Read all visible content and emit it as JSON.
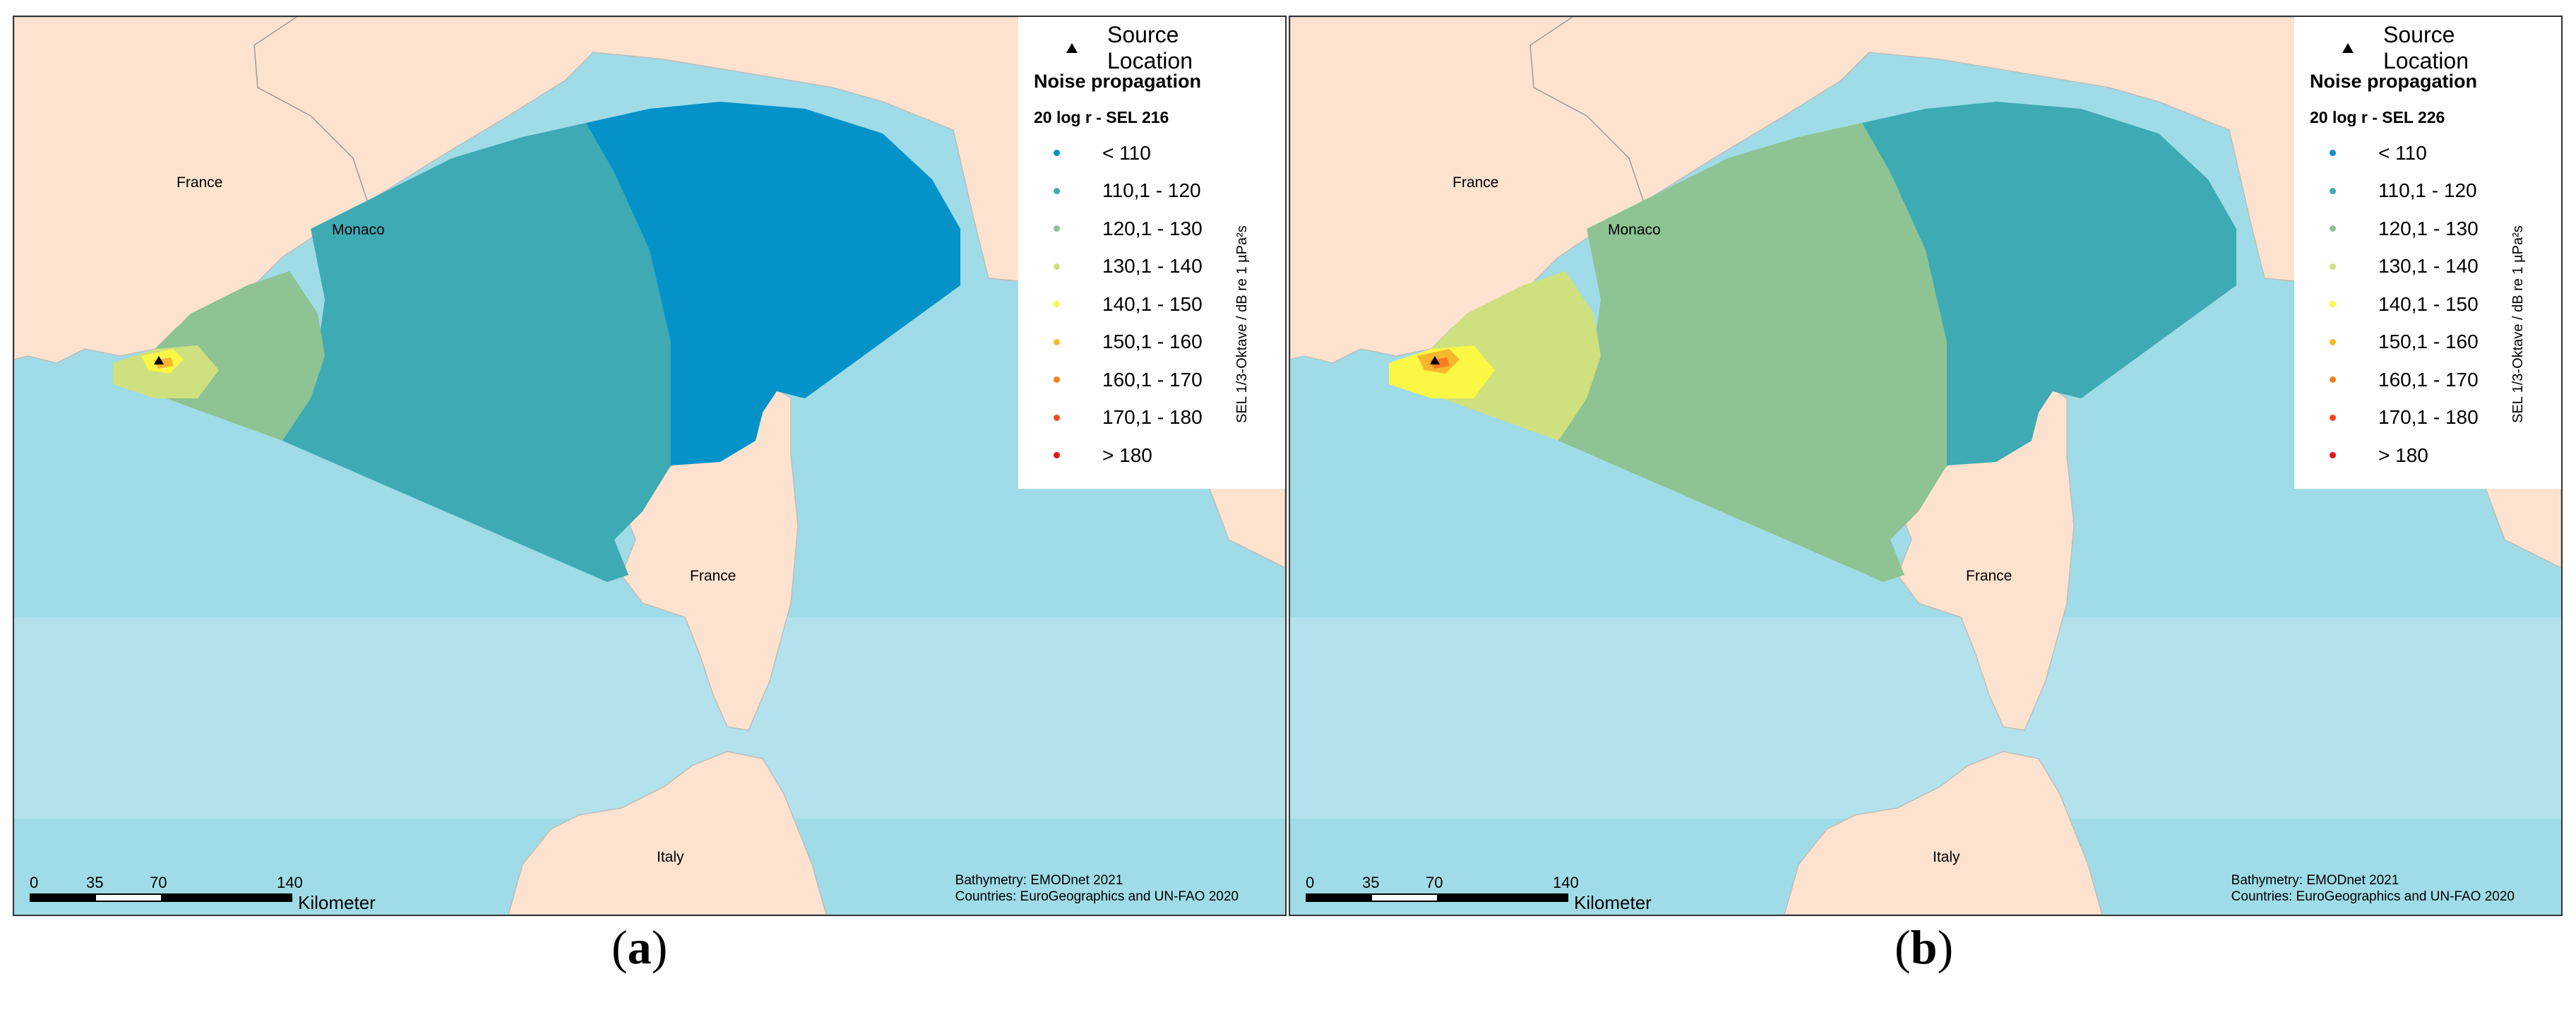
{
  "panels": [
    {
      "caption_letter": "a",
      "legend": {
        "source_label": "Source Location",
        "heading": "Noise propagation",
        "subheading": "20 log r - SEL 216",
        "axis_label": "SEL 1/3-Oktave / dB re 1 µPa²s"
      },
      "places": {
        "france_north": "France",
        "monaco": "Monaco",
        "france_corsica": "France",
        "italy": "Italy"
      },
      "credits": {
        "line1": "Bathymetry: EMODnet 2021",
        "line2": "Countries: EuroGeographics and UN-FAO 2020"
      },
      "scale": {
        "ticks": [
          "0",
          "35",
          "70",
          "140"
        ],
        "unit": "Kilometer"
      }
    },
    {
      "caption_letter": "b",
      "legend": {
        "source_label": "Source Location",
        "heading": "Noise propagation",
        "subheading": "20 log r - SEL 226",
        "axis_label": "SEL 1/3-Oktave / dB re 1 µPa²s"
      },
      "places": {
        "france_north": "France",
        "monaco": "Monaco",
        "france_corsica": "France",
        "italy": "Italy"
      },
      "credits": {
        "line1": "Bathymetry: EMODnet 2021",
        "line2": "Countries: EuroGeographics and UN-FAO 2020"
      },
      "scale": {
        "ticks": [
          "0",
          "35",
          "70",
          "140"
        ],
        "unit": "Kilometer"
      }
    }
  ],
  "legend_classes": [
    {
      "label": "< 110",
      "color": "#0492c9"
    },
    {
      "label": "110,1 - 120",
      "color": "#3eaab4"
    },
    {
      "label": "120,1 - 130",
      "color": "#8ec393"
    },
    {
      "label": "130,1 - 140",
      "color": "#cfe07e"
    },
    {
      "label": "140,1 - 150",
      "color": "#fbf745"
    },
    {
      "label": "150,1 - 160",
      "color": "#f9b72b"
    },
    {
      "label": "160,1 - 170",
      "color": "#f77e1f"
    },
    {
      "label": "170,1 - 180",
      "color": "#f14a1a"
    },
    {
      "label": "> 180",
      "color": "#e3170f"
    }
  ],
  "colors": {
    "land": "#fde3cf",
    "sea_light": "#9fdce7",
    "sea_band": "#b3e2ec",
    "border_line": "#9a9a9a"
  }
}
